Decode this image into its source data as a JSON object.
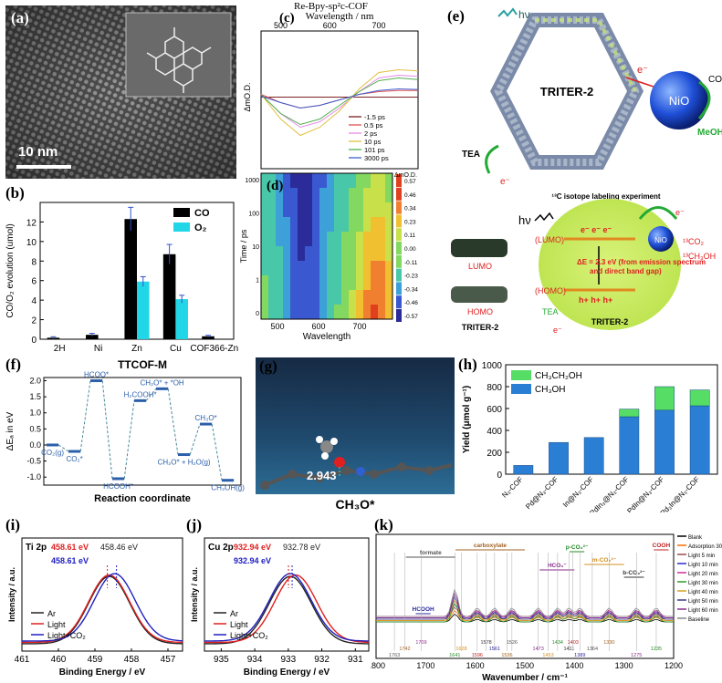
{
  "figure": {
    "panel_labels": [
      "(a)",
      "(b)",
      "(c)",
      "(d)",
      "(e)",
      "(f)",
      "(g)",
      "(h)",
      "(i)",
      "(j)",
      "(k)"
    ]
  },
  "panel_a": {
    "scale_bar": "10 nm"
  },
  "panel_c": {
    "title": "Re-Bpy-sp²c-COF",
    "inner_label": "(a)",
    "legend": [
      "-1.5 ps",
      "0.5 ps",
      "2 ps",
      "10 ps",
      "101 ps",
      "3000 ps"
    ]
  },
  "panel_d": {
    "colorbar_title": "ΔmO.D.",
    "colorbar_ticks": [
      "0.57",
      "0.46",
      "0.34",
      "0.23",
      "0.11",
      "0.00",
      "-0.11",
      "-0.23",
      "-0.34",
      "-0.46",
      "-0.57"
    ],
    "yticks": [
      "1000",
      "100",
      "10",
      "1",
      "0"
    ],
    "xticks": [
      "500",
      "600",
      "700"
    ]
  },
  "panel_e": {
    "framework_label": "TRITER-2",
    "hv": "hν",
    "electron": "e⁻",
    "tea": "TEA",
    "nio": "NiO",
    "co2": "CO₂",
    "meoh": "MeOH",
    "isotope_title": "¹³C isotope labeling experiment",
    "lumo_title": "(LUMO)",
    "homo_title": "(HOMO)",
    "electrons_row": "e⁻ e⁻ e⁻",
    "holes_row": "h+ h+ h+",
    "delta_e": "ΔE = 2.3 eV (from emission spectrum",
    "delta_e2": "and direct band gap)",
    "lumo": "LUMO",
    "homo": "HOMO",
    "c13o2": "¹³CO₂",
    "c13h3oh": "¹³CH₃OH",
    "triter_left": "TRITER-2",
    "triter_right": "TRITER-2"
  },
  "panel_g": {
    "distance": "2.943",
    "species": "CH₃O*"
  },
  "colors": {
    "co": "#000000",
    "o2": "#21d6e6",
    "ch3oh": "#2a7fd4",
    "ch3ch2oh": "#55dd66",
    "ar": "#222222",
    "light": "#e02020",
    "light_co2": "#2020c0",
    "energy": "#2c5faa"
  },
  "chart_data": [
    {
      "panel": "b",
      "type": "bar",
      "categories": [
        "2H",
        "Ni",
        "Zn",
        "Cu",
        "COF366-Zn"
      ],
      "series": [
        {
          "name": "CO",
          "values": [
            0.15,
            0.45,
            12.3,
            8.7,
            0.3
          ],
          "errors": [
            0.1,
            0.15,
            1.2,
            1.0,
            0.1
          ]
        },
        {
          "name": "O₂",
          "values": [
            0.0,
            0.0,
            5.9,
            4.1,
            0.0
          ],
          "errors": [
            0,
            0,
            0.5,
            0.4,
            0
          ]
        }
      ],
      "ylabel": "CO/O₂ evolution (umol)",
      "ylim": [
        0,
        14
      ],
      "yticks": [
        0,
        2,
        4,
        6,
        8,
        10,
        12
      ]
    },
    {
      "panel": "c",
      "type": "line",
      "xlabel": "Wavelength / nm",
      "ylabel": "ΔmO.D.",
      "xticks": [
        500,
        600,
        700
      ],
      "xlim": [
        460,
        780
      ],
      "x": [
        460,
        500,
        540,
        580,
        620,
        660,
        700,
        740,
        780
      ],
      "series": [
        {
          "name": "-1.5 ps",
          "color": "#7a2020",
          "values": [
            0,
            0,
            0,
            0,
            0,
            0,
            0,
            0,
            0
          ]
        },
        {
          "name": "0.5 ps",
          "color": "#e05050",
          "values": [
            0.05,
            -0.1,
            -0.2,
            -0.15,
            -0.05,
            0.05,
            0.1,
            0.12,
            0.12
          ]
        },
        {
          "name": "2 ps",
          "color": "#e88ae8",
          "values": [
            0.05,
            -0.3,
            -0.55,
            -0.45,
            -0.2,
            0.1,
            0.35,
            0.4,
            0.38
          ]
        },
        {
          "name": "10 ps",
          "color": "#e0c040",
          "values": [
            0.05,
            -0.4,
            -0.7,
            -0.55,
            -0.25,
            0.15,
            0.45,
            0.5,
            0.48
          ]
        },
        {
          "name": "101 ps",
          "color": "#50b050",
          "values": [
            0.05,
            -0.3,
            -0.5,
            -0.4,
            -0.15,
            0.1,
            0.3,
            0.35,
            0.32
          ]
        },
        {
          "name": "3000 ps",
          "color": "#4060d0",
          "values": [
            0.02,
            -0.1,
            -0.2,
            -0.15,
            -0.05,
            0.05,
            0.12,
            0.15,
            0.14
          ]
        }
      ]
    },
    {
      "panel": "d",
      "type": "heatmap",
      "xlabel": "Wavelength",
      "ylabel": "Time / ps",
      "xlim": [
        460,
        780
      ]
    },
    {
      "panel": "f",
      "type": "line",
      "title": "TTCOF-M",
      "xlabel": "Reaction coordinate",
      "ylabel": "ΔEₐ in eV",
      "ylim": [
        -1.25,
        2.1
      ],
      "yticks": [
        -1.0,
        -0.5,
        0.0,
        0.5,
        1.0,
        1.5,
        2.0
      ],
      "levels": [
        {
          "label": "CO₂(g)",
          "value": 0.0
        },
        {
          "label": "CO₂*",
          "value": -0.2
        },
        {
          "label": "HCOO*",
          "value": 2.0
        },
        {
          "label": "HCOOH*",
          "value": -1.05
        },
        {
          "label": "H₂COOH*",
          "value": 1.38
        },
        {
          "label": "CH₂O* + *OH",
          "value": 1.75
        },
        {
          "label": "CH₂O* + H₂O(g)",
          "value": -0.3
        },
        {
          "label": "CH₃O*",
          "value": 0.65
        },
        {
          "label": "CH₃OH(g)",
          "value": -1.1
        }
      ]
    },
    {
      "panel": "h",
      "type": "bar",
      "stacked": true,
      "categories": [
        "N₃-COF",
        "Pd@N₃-COF",
        "In@N₃-COF",
        "PdIn₃@N₃-COF",
        "PdIn@N₃-COF",
        "Pd₃In@N₃-COF"
      ],
      "series": [
        {
          "name": "CH₃OH",
          "values": [
            80,
            290,
            335,
            525,
            585,
            625
          ]
        },
        {
          "name": "CH₃CH₂OH",
          "values": [
            0,
            0,
            0,
            70,
            215,
            145
          ]
        }
      ],
      "ylabel": "Yield (μmol g⁻¹)",
      "ylim": [
        0,
        1000
      ],
      "yticks": [
        0,
        200,
        400,
        600,
        800,
        1000
      ]
    },
    {
      "panel": "i",
      "type": "line",
      "title": "Ti 2p",
      "xlabel": "Binding Energy / eV",
      "ylabel": "Intensity / a.u.",
      "xlim": [
        461,
        456.6
      ],
      "xticks": [
        461,
        460,
        459,
        458,
        457
      ],
      "annotations": [
        "458.61 eV",
        "458.46 eV",
        "458.61 eV"
      ],
      "series": [
        {
          "name": "Ar",
          "center": 458.61
        },
        {
          "name": "Light",
          "center": 458.61
        },
        {
          "name": "Light+CO₂",
          "center": 458.46
        }
      ]
    },
    {
      "panel": "j",
      "type": "line",
      "title": "Cu 2p",
      "xlabel": "Binding Energy / eV",
      "ylabel": "Intensity / a.u.",
      "xlim": [
        935.5,
        930.6
      ],
      "xticks": [
        935,
        934,
        933,
        932,
        931
      ],
      "annotations": [
        "932.94 eV",
        "932.78 eV",
        "932.94 eV"
      ],
      "series": [
        {
          "name": "Ar",
          "center": 932.94
        },
        {
          "name": "Light",
          "center": 932.78
        },
        {
          "name": "Light+CO₂",
          "center": 932.94
        }
      ]
    },
    {
      "panel": "k",
      "type": "line",
      "xlabel": "Wavenumber / cm⁻¹",
      "xlim": [
        1800,
        1200
      ],
      "xticks": [
        1800,
        1700,
        1600,
        1500,
        1400,
        1300,
        1200
      ],
      "legend": [
        "Blank",
        "Adsorption 30 min",
        "Light 5 min",
        "Light 10 min",
        "Light 20 min",
        "Light 30 min",
        "Light 40 min",
        "Light 50 min",
        "Light 60 min",
        "Baseline"
      ],
      "bands": [
        "formate",
        "carboxylate",
        "HCO₃⁻",
        "p-CO₃²⁻",
        "m-CO₃²⁻",
        "b-CO₃²⁻",
        "COOH",
        "HCOOH"
      ],
      "peaks": [
        "1763",
        "1742",
        "1709",
        "1641",
        "1628",
        "1578",
        "1596",
        "1561",
        "1526",
        "1536",
        "1473",
        "1434",
        "1453",
        "1411",
        "1403",
        "1389",
        "1364",
        "1330",
        "1275",
        "1235"
      ]
    }
  ]
}
